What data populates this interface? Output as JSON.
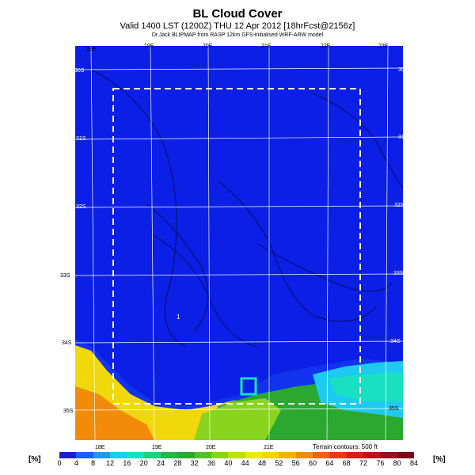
{
  "header": {
    "title": "BL Cloud Cover",
    "subtitle": "Valid 1400 LST (1200Z) THU 12 Apr 2012 [18hrFcst@2156z]",
    "credit": "Dr.Jack BLIPMAP from RASP 12km GFS-initialised WRF-ARW model"
  },
  "map": {
    "lon_labels": [
      "18E",
      "19E",
      "20E",
      "21E",
      "22E",
      "23E"
    ],
    "lat_labels": [
      "30S",
      "31S",
      "32S",
      "33S",
      "34S",
      "35S"
    ],
    "terrain_note": "Terrain contours: 500 ft",
    "point_marker": "1",
    "colors": {
      "sea": "#1133ee",
      "land_low_cloud": "#0b1fe6",
      "region_outline": "#ffffff"
    }
  },
  "legend": {
    "unit_left": "[%]",
    "unit_right": "[%]",
    "ticks": [
      "0",
      "4",
      "8",
      "12",
      "16",
      "20",
      "24",
      "28",
      "32",
      "36",
      "40",
      "44",
      "48",
      "52",
      "56",
      "60",
      "64",
      "68",
      "72",
      "76",
      "80",
      "84"
    ],
    "colors": [
      "#1a20c8",
      "#1a5ff5",
      "#1e98f5",
      "#1ecbf0",
      "#19e0c0",
      "#22d17a",
      "#22b848",
      "#2aa830",
      "#52c028",
      "#88d41e",
      "#bde012",
      "#e8ec0c",
      "#f7d40a",
      "#f7b00a",
      "#f28a0a",
      "#ec640c",
      "#e63a10",
      "#d41e16",
      "#b8141a",
      "#9c0c1e",
      "#7c0818"
    ]
  }
}
